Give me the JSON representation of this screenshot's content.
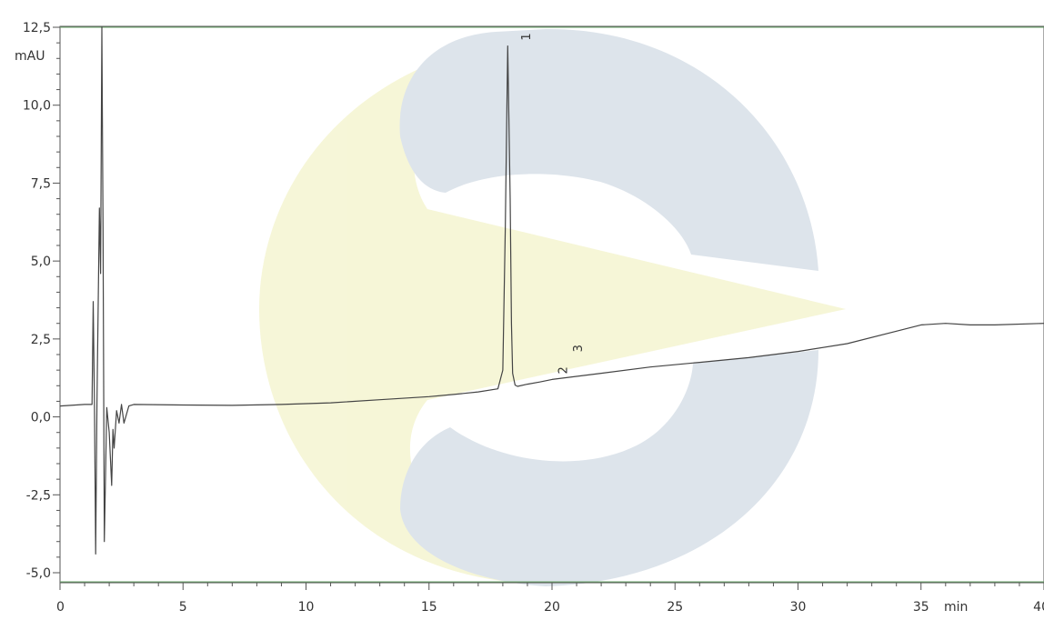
{
  "chart_data": {
    "type": "line",
    "title": "",
    "xlabel": "",
    "ylabel": "",
    "x_unit": "min",
    "y_unit": "mAU",
    "xlim": [
      0,
      40
    ],
    "ylim": [
      -5.0,
      12.5
    ],
    "x_ticks": [
      0,
      5,
      10,
      15,
      20,
      25,
      30,
      35,
      40
    ],
    "x_tick_labels": [
      "0",
      "5",
      "10",
      "15",
      "20",
      "25",
      "30",
      "35",
      "40"
    ],
    "y_ticks": [
      -5.0,
      -2.5,
      0.0,
      2.5,
      5.0,
      7.5,
      10.0,
      12.5
    ],
    "y_tick_labels": [
      "-5,0",
      "-2,5",
      "0,0",
      "2,5",
      "5,0",
      "7,5",
      "10,0",
      "12,5"
    ],
    "grid": false,
    "series": [
      {
        "color": "#444444",
        "x": [
          0.0,
          1.0,
          1.3,
          1.35,
          1.4,
          1.45,
          1.5,
          1.6,
          1.65,
          1.7,
          1.75,
          1.8,
          1.9,
          2.0,
          2.1,
          2.15,
          2.2,
          2.3,
          2.4,
          2.5,
          2.6,
          2.8,
          3.0,
          5.0,
          7.0,
          9.0,
          11.0,
          13.0,
          15.0,
          16.0,
          17.0,
          17.8,
          18.0,
          18.1,
          18.2,
          18.3,
          18.35,
          18.4,
          18.5,
          18.6,
          19.0,
          19.5,
          20.0,
          22.0,
          24.0,
          26.0,
          28.0,
          30.0,
          32.0,
          34.0,
          35.0,
          36.0,
          37.0,
          38.0,
          40.0
        ],
        "y": [
          0.35,
          0.4,
          0.4,
          3.7,
          0.3,
          -4.4,
          0.4,
          6.7,
          4.6,
          12.5,
          6.0,
          -4.0,
          0.3,
          -0.5,
          -2.2,
          -0.4,
          -1.0,
          0.2,
          -0.2,
          0.4,
          -0.2,
          0.35,
          0.4,
          0.38,
          0.37,
          0.4,
          0.45,
          0.55,
          0.65,
          0.72,
          0.8,
          0.9,
          1.5,
          6.0,
          11.9,
          7.0,
          3.0,
          1.4,
          1.02,
          0.98,
          1.05,
          1.12,
          1.2,
          1.4,
          1.6,
          1.75,
          1.9,
          2.1,
          2.35,
          2.75,
          2.95,
          3.0,
          2.95,
          2.95,
          3.0
        ]
      }
    ],
    "peak_labels": [
      {
        "text": "1",
        "x": 18.3,
        "y": 11.9
      },
      {
        "text": "2",
        "x": 19.8,
        "y": 1.2
      },
      {
        "text": "3",
        "x": 20.4,
        "y": 1.9
      }
    ]
  }
}
